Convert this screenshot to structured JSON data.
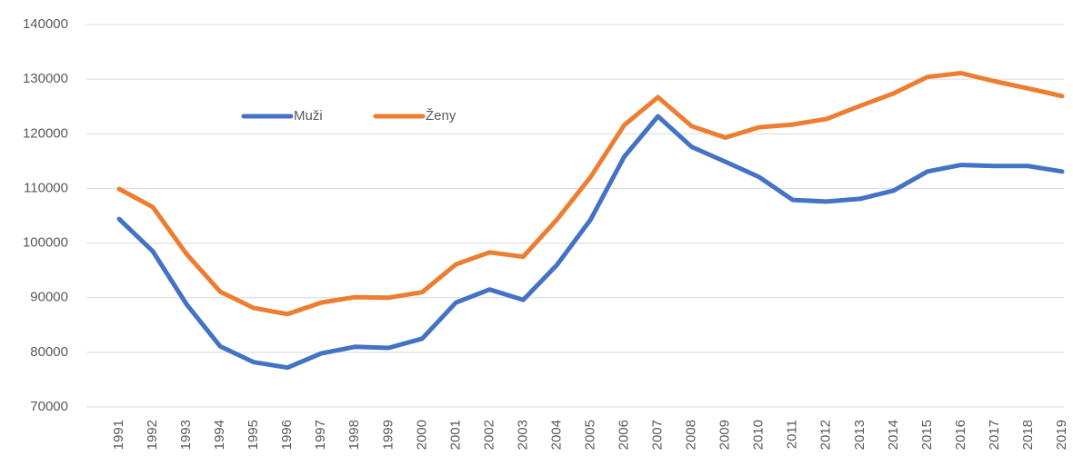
{
  "chart_data": {
    "type": "line",
    "categories": [
      "1991",
      "1992",
      "1993",
      "1994",
      "1995",
      "1996",
      "1997",
      "1998",
      "1999",
      "2000",
      "2001",
      "2002",
      "2003",
      "2004",
      "2005",
      "2006",
      "2007",
      "2008",
      "2009",
      "2010",
      "2011",
      "2012",
      "2013",
      "2014",
      "2015",
      "2016",
      "2017",
      "2018",
      "2019"
    ],
    "series": [
      {
        "name": "Muži",
        "color": "#4472c4",
        "values": [
          104400,
          98500,
          88800,
          81100,
          78200,
          77200,
          79800,
          81000,
          80800,
          82500,
          89100,
          91500,
          89600,
          96000,
          104300,
          115800,
          123200,
          117600,
          114900,
          112100,
          107900,
          107600,
          108100,
          109600,
          113100,
          114300,
          114100,
          114100,
          113100
        ]
      },
      {
        "name": "Ženy",
        "color": "#ed7d31",
        "values": [
          109900,
          106600,
          98000,
          91100,
          88100,
          87000,
          89100,
          90100,
          90000,
          91000,
          96100,
          98300,
          97500,
          104300,
          112100,
          121600,
          126700,
          121400,
          119300,
          121200,
          121700,
          122700,
          125100,
          127400,
          130400,
          131100,
          129600,
          128300,
          126900
        ]
      }
    ],
    "ylim": [
      70000,
      140000
    ],
    "yticks": [
      70000,
      80000,
      90000,
      100000,
      110000,
      120000,
      130000,
      140000
    ],
    "grid": true
  }
}
